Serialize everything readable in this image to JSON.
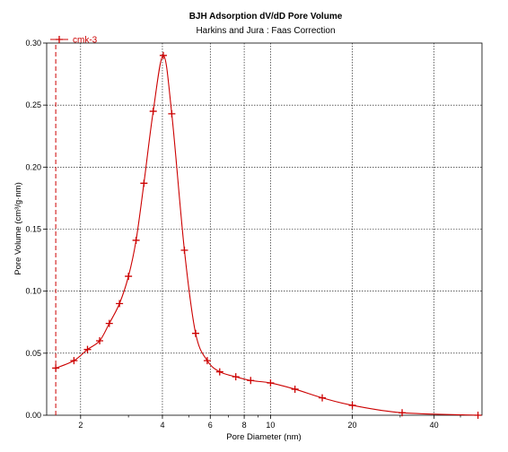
{
  "chart_data": {
    "type": "line",
    "title": "BJH Adsorption dV/dD Pore Volume",
    "subtitle": "Harkins and Jura : Faas Correction",
    "xlabel": "Pore Diameter (nm)",
    "ylabel": "Pore Volume (cm³/g·nm)",
    "x_scale": "log",
    "xlim": [
      1.5,
      60
    ],
    "ylim": [
      0,
      0.3
    ],
    "x_ticks": [
      2,
      4,
      6,
      8,
      10,
      20,
      40
    ],
    "x_tick_labels": [
      "2",
      "4",
      "6",
      "8",
      "10",
      "20",
      "40"
    ],
    "y_ticks": [
      0,
      0.05,
      0.1,
      0.15,
      0.2,
      0.25,
      0.3
    ],
    "y_tick_labels": [
      "0.00",
      "0.05",
      "0.10",
      "0.15",
      "0.20",
      "0.25",
      "0.30"
    ],
    "grid": true,
    "legend_position": "top-left",
    "color": "#cc0000",
    "series": [
      {
        "name": "cmk-3",
        "x": [
          1.62,
          1.89,
          2.12,
          2.35,
          2.55,
          2.78,
          3.0,
          3.2,
          3.42,
          3.7,
          4.03,
          4.33,
          4.82,
          5.3,
          5.85,
          6.5,
          7.45,
          8.45,
          10.0,
          12.3,
          15.5,
          20.0,
          30.5,
          58.0
        ],
        "y": [
          0.038,
          0.044,
          0.053,
          0.06,
          0.074,
          0.09,
          0.112,
          0.141,
          0.187,
          0.245,
          0.29,
          0.243,
          0.133,
          0.066,
          0.044,
          0.035,
          0.031,
          0.028,
          0.026,
          0.021,
          0.014,
          0.008,
          0.002,
          0.0
        ]
      }
    ]
  }
}
